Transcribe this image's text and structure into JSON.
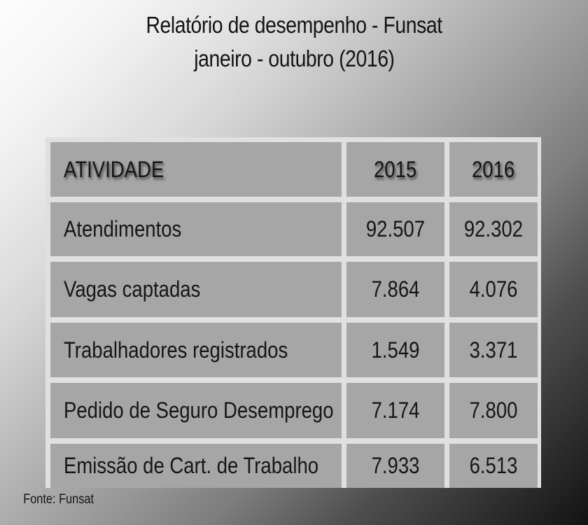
{
  "chart_data": {
    "type": "table",
    "title": "Relatório de desempenho - Funsat",
    "subtitle": "janeiro - outubro (2016)",
    "columns": [
      "ATIVIDADE",
      "2015",
      "2016"
    ],
    "rows": [
      [
        "Atendimentos",
        "92.507",
        "92.302"
      ],
      [
        "Vagas captadas",
        "7.864",
        "4.076"
      ],
      [
        "Trabalhadores registrados",
        "1.549",
        "3.371"
      ],
      [
        "Pedido de Seguro Desemprego",
        "7.174",
        "7.800"
      ],
      [
        "Emissão de Cart. de Trabalho",
        "7.933",
        "6.513"
      ]
    ],
    "categories": [
      "Atendimentos",
      "Vagas captadas",
      "Trabalhadores registrados",
      "Pedido de Seguro Desemprego",
      "Emissão de Cart. de Trabalho"
    ],
    "series": [
      {
        "name": "2015",
        "values": [
          92507,
          7864,
          1549,
          7174,
          7933
        ]
      },
      {
        "name": "2016",
        "values": [
          92302,
          4076,
          3371,
          7800,
          6513
        ]
      }
    ],
    "source": "Fonte: Funsat"
  },
  "colors": {
    "cell_background": "#a6a6a6",
    "divider": "#e0e0e0",
    "text": "#141414",
    "background_gradient_start": "#fdfdfd",
    "background_gradient_end": "#131313"
  }
}
